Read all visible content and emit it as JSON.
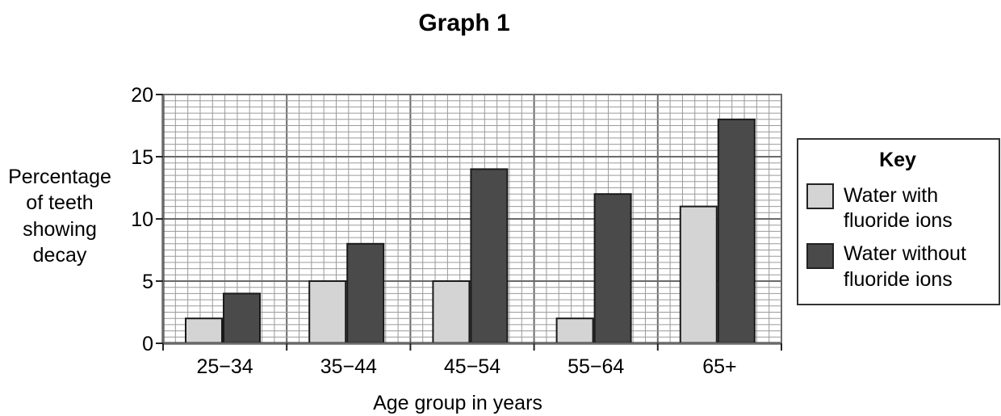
{
  "chart_data": {
    "type": "bar",
    "title": "Graph 1",
    "xlabel": "Age group in years",
    "ylabel_lines": [
      "Percentage",
      "of teeth",
      "showing",
      "decay"
    ],
    "categories": [
      "25−34",
      "35−44",
      "45−54",
      "55−64",
      "65+"
    ],
    "ylim": [
      0,
      20
    ],
    "yticks": [
      "0",
      "5",
      "10",
      "15",
      "20"
    ],
    "grid": true,
    "legend": {
      "title": "Key",
      "placement": "right"
    },
    "series": [
      {
        "name_lines": [
          "Water with",
          "fluoride ions"
        ],
        "values": [
          2,
          5,
          5,
          2,
          11
        ],
        "color": "#d4d4d4"
      },
      {
        "name_lines": [
          "Water without",
          "fluoride ions"
        ],
        "values": [
          4,
          8,
          14,
          12,
          18
        ],
        "color": "#4a4a4a"
      }
    ]
  }
}
